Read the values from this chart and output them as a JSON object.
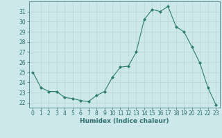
{
  "x": [
    0,
    1,
    2,
    3,
    4,
    5,
    6,
    7,
    8,
    9,
    10,
    11,
    12,
    13,
    14,
    15,
    16,
    17,
    18,
    19,
    20,
    21,
    22,
    23
  ],
  "y": [
    25.0,
    23.5,
    23.1,
    23.1,
    22.5,
    22.4,
    22.2,
    22.1,
    22.7,
    23.1,
    24.5,
    25.5,
    25.6,
    27.0,
    30.2,
    31.2,
    31.0,
    31.5,
    29.5,
    29.0,
    27.5,
    25.9,
    23.5,
    21.8
  ],
  "line_color": "#2d7d6e",
  "marker": "D",
  "marker_size": 2.0,
  "bg_color": "#cce8ea",
  "grid_color": "#b8d4d6",
  "xlabel": "Humidex (Indice chaleur)",
  "xlim": [
    -0.5,
    23.5
  ],
  "ylim": [
    21.5,
    32.0
  ],
  "yticks": [
    22,
    23,
    24,
    25,
    26,
    27,
    28,
    29,
    30,
    31
  ],
  "xticks": [
    0,
    1,
    2,
    3,
    4,
    5,
    6,
    7,
    8,
    9,
    10,
    11,
    12,
    13,
    14,
    15,
    16,
    17,
    18,
    19,
    20,
    21,
    22,
    23
  ],
  "tick_color": "#2d6e6e",
  "label_color": "#2d6e6e",
  "tick_fontsize": 5.5,
  "xlabel_fontsize": 6.5
}
